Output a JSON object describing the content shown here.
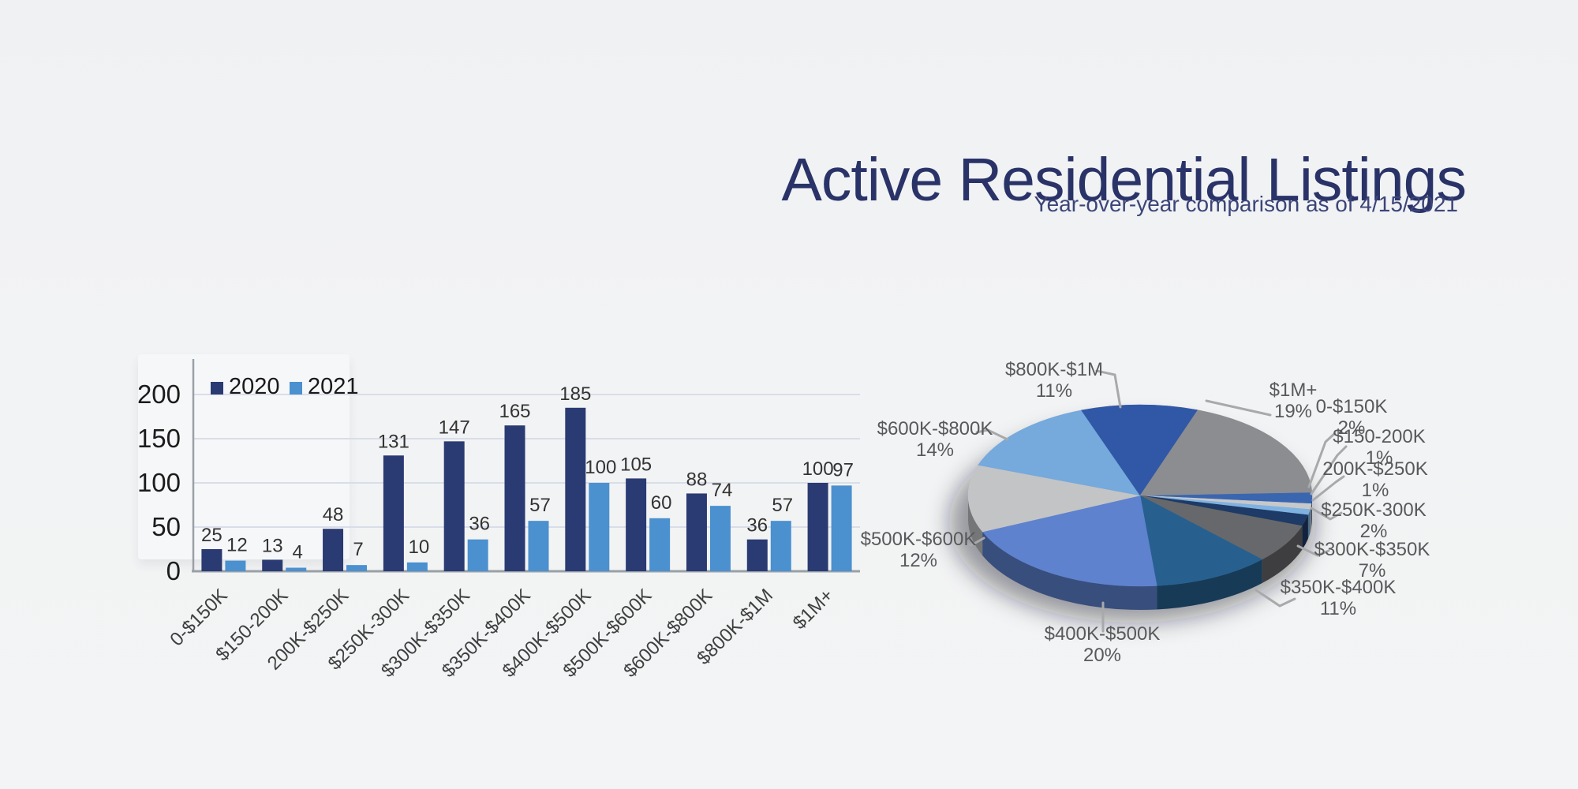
{
  "header": {
    "title": "Active Residential Listings",
    "subtitle": "Year-over-year comparison as of 4/15/2021",
    "title_color": "#2a3368",
    "subtitle_color": "#3b4579"
  },
  "categories": [
    "0-$150K",
    "$150-200K",
    "200K-$250K",
    "$250K-300K",
    "$300K-$350K",
    "$350K-$400K",
    "$400K-$500K",
    "$500K-$600K",
    "$600K-$800K",
    "$800K-$1M",
    "$1M+"
  ],
  "chart_data": [
    {
      "type": "bar",
      "categories": [
        "0-$150K",
        "$150-200K",
        "200K-$250K",
        "$250K-300K",
        "$300K-$350K",
        "$350K-$400K",
        "$400K-$500K",
        "$500K-$600K",
        "$600K-$800K",
        "$800K-$1M",
        "$1M+"
      ],
      "series": [
        {
          "name": "2020",
          "color": "#2a3a72",
          "values": [
            25,
            13,
            48,
            131,
            147,
            165,
            185,
            105,
            88,
            36,
            100
          ]
        },
        {
          "name": "2021",
          "color": "#4b90cf",
          "values": [
            12,
            4,
            7,
            10,
            36,
            57,
            100,
            60,
            74,
            57,
            97
          ]
        }
      ],
      "yticks": [
        0,
        50,
        100,
        150,
        200
      ],
      "ylim": [
        0,
        220
      ],
      "grid": true,
      "legend_position": "top-left",
      "value_labels": true
    },
    {
      "type": "pie",
      "style": "3d",
      "unit": "%",
      "labels": [
        "0-$150K",
        "$150-200K",
        "200K-$250K",
        "$250K-300K",
        "$300K-$350K",
        "$350K-$400K",
        "$400K-$500K",
        "$500K-$600K",
        "$600K-$800K",
        "$800K-$1M",
        "$1M+"
      ],
      "values": [
        2,
        1,
        1,
        2,
        7,
        11,
        20,
        12,
        14,
        11,
        19
      ],
      "colors": [
        "#3a66b0",
        "#c7c8ca",
        "#7fb2e0",
        "#1e3a66",
        "#67686b",
        "#27608f",
        "#5e82ce",
        "#c3c4c6",
        "#76a9dc",
        "#3058a6",
        "#8c8d91"
      ],
      "percent_labels": [
        "2%",
        "1%",
        "1%",
        "2%",
        "7%",
        "11%",
        "20%",
        "12%",
        "14%",
        "11%",
        "19%"
      ]
    }
  ]
}
